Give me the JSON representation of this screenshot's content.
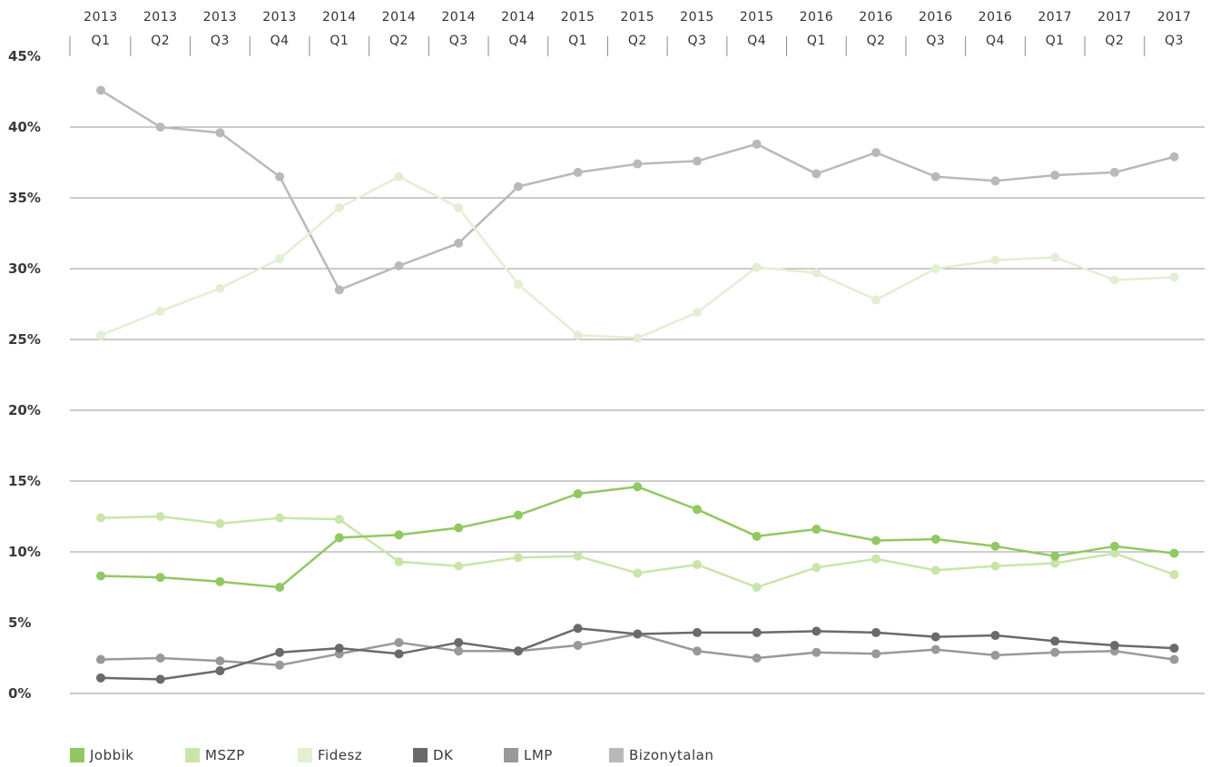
{
  "chart_data": {
    "type": "line",
    "categories": [
      [
        "2013",
        "Q1"
      ],
      [
        "2013",
        "Q2"
      ],
      [
        "2013",
        "Q3"
      ],
      [
        "2013",
        "Q4"
      ],
      [
        "2014",
        "Q1"
      ],
      [
        "2014",
        "Q2"
      ],
      [
        "2014",
        "Q3"
      ],
      [
        "2014",
        "Q4"
      ],
      [
        "2015",
        "Q1"
      ],
      [
        "2015",
        "Q2"
      ],
      [
        "2015",
        "Q3"
      ],
      [
        "2015",
        "Q4"
      ],
      [
        "2016",
        "Q1"
      ],
      [
        "2016",
        "Q2"
      ],
      [
        "2016",
        "Q3"
      ],
      [
        "2016",
        "Q4"
      ],
      [
        "2017",
        "Q1"
      ],
      [
        "2017",
        "Q2"
      ],
      [
        "2017",
        "Q3"
      ]
    ],
    "y_ticks": [
      "0%",
      "5%",
      "10%",
      "15%",
      "20%",
      "25%",
      "30%",
      "35%",
      "40%",
      "45%"
    ],
    "ylim": [
      0,
      45
    ],
    "gridlines": [
      0,
      10,
      15,
      20,
      25,
      30,
      35,
      40
    ],
    "legend_position": "bottom-left",
    "series": [
      {
        "name": "Jobbik",
        "color": "#92c862",
        "values": [
          8.3,
          8.2,
          7.9,
          7.5,
          11.0,
          11.2,
          11.7,
          12.6,
          14.1,
          14.6,
          13.0,
          11.1,
          11.6,
          10.8,
          10.9,
          10.4,
          9.7,
          10.4,
          9.9
        ]
      },
      {
        "name": "MSZP",
        "color": "#c9e5a9",
        "values": [
          12.4,
          12.5,
          12.0,
          12.4,
          12.3,
          9.3,
          9.0,
          9.6,
          9.7,
          8.5,
          9.1,
          7.5,
          8.9,
          9.5,
          8.7,
          9.0,
          9.2,
          9.9,
          8.4
        ]
      },
      {
        "name": "Fidesz",
        "color": "#e2efd3",
        "values": [
          25.3,
          27.0,
          28.6,
          30.7,
          34.3,
          36.5,
          34.3,
          28.9,
          25.3,
          25.1,
          26.9,
          30.1,
          29.7,
          27.8,
          30.0,
          30.6,
          30.8,
          29.2,
          29.4
        ]
      },
      {
        "name": "DK",
        "color": "#6a6a6a",
        "values": [
          1.1,
          1.0,
          1.6,
          2.9,
          3.2,
          2.8,
          3.6,
          3.0,
          4.6,
          4.2,
          4.3,
          4.3,
          4.4,
          4.3,
          4.0,
          4.1,
          3.7,
          3.4,
          3.2
        ]
      },
      {
        "name": "LMP",
        "color": "#999999",
        "values": [
          2.4,
          2.5,
          2.3,
          2.0,
          2.8,
          3.6,
          3.0,
          3.0,
          3.4,
          4.2,
          3.0,
          2.5,
          2.9,
          2.8,
          3.1,
          2.7,
          2.9,
          3.0,
          2.4
        ]
      },
      {
        "name": "Bizonytalan",
        "color": "#b9b9b9",
        "values": [
          42.6,
          40.0,
          39.6,
          36.5,
          28.5,
          30.2,
          31.8,
          35.8,
          36.8,
          37.4,
          37.6,
          38.8,
          36.7,
          38.2,
          36.5,
          36.2,
          36.6,
          36.8,
          37.9
        ]
      }
    ]
  }
}
